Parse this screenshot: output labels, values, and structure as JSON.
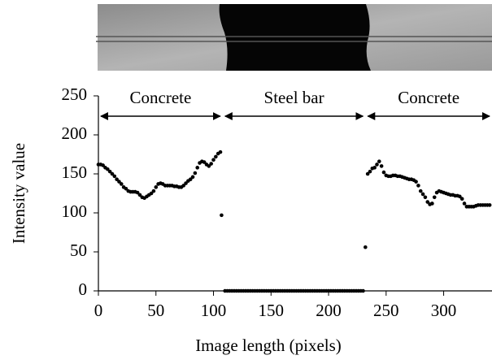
{
  "chart_data": {
    "type": "scatter",
    "xlabel": "Image length (pixels)",
    "ylabel": "Intensity value",
    "color": "#000000",
    "xlim": [
      0,
      342
    ],
    "ylim": [
      0,
      250
    ],
    "xticks": [
      0,
      50,
      100,
      150,
      200,
      250,
      300
    ],
    "yticks": [
      0,
      50,
      100,
      150,
      200,
      250
    ],
    "annotations": [
      {
        "text": "Concrete",
        "from": 0,
        "to": 108
      },
      {
        "text": "Steel bar",
        "from": 108,
        "to": 232
      },
      {
        "text": "Concrete",
        "from": 232,
        "to": 342
      }
    ],
    "x": [
      0,
      2,
      4,
      6,
      8,
      10,
      12,
      14,
      16,
      18,
      20,
      22,
      24,
      26,
      28,
      30,
      32,
      34,
      36,
      38,
      40,
      42,
      44,
      46,
      48,
      50,
      52,
      54,
      56,
      58,
      60,
      62,
      64,
      66,
      68,
      70,
      72,
      74,
      76,
      78,
      80,
      82,
      84,
      86,
      88,
      90,
      92,
      94,
      96,
      98,
      100,
      102,
      104,
      106,
      107,
      110,
      112,
      114,
      116,
      118,
      120,
      122,
      124,
      126,
      128,
      130,
      132,
      134,
      136,
      138,
      140,
      142,
      144,
      146,
      148,
      150,
      152,
      154,
      156,
      158,
      160,
      162,
      164,
      166,
      168,
      170,
      172,
      174,
      176,
      178,
      180,
      182,
      184,
      186,
      188,
      190,
      192,
      194,
      196,
      198,
      200,
      202,
      204,
      206,
      208,
      210,
      212,
      214,
      216,
      218,
      220,
      222,
      224,
      226,
      228,
      230,
      232,
      234,
      236,
      238,
      240,
      242,
      244,
      246,
      248,
      250,
      252,
      254,
      256,
      258,
      260,
      262,
      264,
      266,
      268,
      270,
      272,
      274,
      276,
      278,
      280,
      282,
      284,
      286,
      288,
      290,
      292,
      294,
      296,
      298,
      300,
      302,
      304,
      306,
      308,
      310,
      312,
      314,
      316,
      318,
      320,
      322,
      324,
      326,
      328,
      330,
      332,
      334,
      336,
      338,
      340
    ],
    "values": [
      162,
      162,
      161,
      158,
      156,
      153,
      150,
      147,
      143,
      140,
      137,
      133,
      131,
      128,
      127,
      127,
      127,
      126,
      123,
      120,
      119,
      121,
      123,
      125,
      128,
      133,
      137,
      138,
      137,
      135,
      135,
      135,
      135,
      134,
      134,
      133,
      133,
      135,
      138,
      141,
      143,
      146,
      151,
      158,
      164,
      166,
      165,
      162,
      160,
      163,
      168,
      172,
      176,
      178,
      97,
      0,
      0,
      0,
      0,
      0,
      0,
      0,
      0,
      0,
      0,
      0,
      0,
      0,
      0,
      0,
      0,
      0,
      0,
      0,
      0,
      0,
      0,
      0,
      0,
      0,
      0,
      0,
      0,
      0,
      0,
      0,
      0,
      0,
      0,
      0,
      0,
      0,
      0,
      0,
      0,
      0,
      0,
      0,
      0,
      0,
      0,
      0,
      0,
      0,
      0,
      0,
      0,
      0,
      0,
      0,
      0,
      0,
      0,
      0,
      0,
      0,
      56,
      150,
      153,
      157,
      158,
      162,
      166,
      160,
      152,
      148,
      147,
      147,
      148,
      148,
      147,
      147,
      146,
      145,
      144,
      143,
      143,
      142,
      140,
      135,
      128,
      124,
      120,
      114,
      111,
      112,
      120,
      126,
      128,
      127,
      126,
      125,
      124,
      123,
      123,
      122,
      122,
      121,
      118,
      112,
      108,
      108,
      108,
      108,
      109,
      110,
      110,
      110,
      110,
      110,
      110
    ]
  }
}
